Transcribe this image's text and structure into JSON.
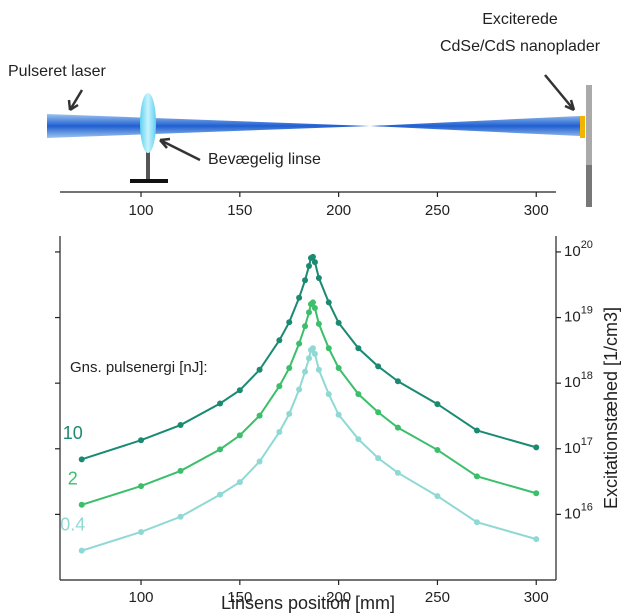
{
  "diagram": {
    "laser_label": "Pulseret laser",
    "lens_label": "Bevægelig linse",
    "sample_label": [
      "Exciterede",
      "CdSe/CdS nanoplader"
    ],
    "xlim": [
      59,
      310
    ],
    "xticks": [
      100,
      150,
      200,
      250,
      300
    ]
  },
  "chart_data": {
    "type": "line",
    "x_label": "Linsens position [mm]",
    "y_label": "Excitationstæhed [1/cm3]",
    "annotation": "Gns. pulsenergi [nJ]:",
    "x": [
      70,
      100,
      120,
      140,
      150,
      160,
      170,
      175,
      180,
      183,
      185,
      186,
      187,
      188,
      190,
      195,
      200,
      210,
      220,
      230,
      250,
      270,
      300
    ],
    "series": [
      {
        "name": "10",
        "color": "#1a8a72",
        "values": [
          6.9e+16,
          1.35e+17,
          2.3e+17,
          4.9e+17,
          7.8e+17,
          1.6e+18,
          4.5e+18,
          8.5e+18,
          2e+19,
          3.7e+19,
          6.1e+19,
          8.1e+19,
          8.4e+19,
          7e+19,
          4e+19,
          1.7e+19,
          8.3e+18,
          3.4e+18,
          1.8e+18,
          1.07e+18,
          4.8e+17,
          1.9e+17,
          1.05e+17
        ]
      },
      {
        "name": "2",
        "color": "#3cbf6b",
        "values": [
          1.4e+16,
          2.7e+16,
          4.6e+16,
          9.8e+16,
          1.6e+17,
          3.2e+17,
          9e+17,
          1.7e+18,
          4e+18,
          7.4e+18,
          1.2e+19,
          1.6e+19,
          1.7e+19,
          1.4e+19,
          8e+18,
          3.4e+18,
          1.7e+18,
          6.8e+17,
          3.6e+17,
          2.1e+17,
          9.6e+16,
          3.8e+16,
          2.1e+16
        ]
      },
      {
        "name": "0.4",
        "color": "#8fd9d4",
        "values": [
          2800000000000000.0,
          5400000000000000.0,
          9200000000000000.0,
          2e+16,
          3.1e+16,
          6.4e+16,
          1.8e+17,
          3.4e+17,
          8e+17,
          1.5e+18,
          2.4e+18,
          3.2e+18,
          3.4e+18,
          2.8e+18,
          1.6e+18,
          6.8e+17,
          3.3e+17,
          1.4e+17,
          7.2e+16,
          4.3e+16,
          1.9e+16,
          7600000000000000.0,
          4200000000000000.0
        ]
      }
    ],
    "xlim": [
      59,
      310
    ],
    "xticks": [
      100,
      150,
      200,
      250,
      300
    ],
    "ylim": [
      1000000000000000.0,
      1.75e+20
    ],
    "log_y": true,
    "y_axis_side": "right",
    "yticks": [
      {
        "value": 1e+16,
        "label": "10^16"
      },
      {
        "value": 1e+17,
        "label": "10^17"
      },
      {
        "value": 1e+18,
        "label": "10^18"
      },
      {
        "value": 1e+19,
        "label": "10^19"
      },
      {
        "value": 1e+20,
        "label": "10^20"
      }
    ]
  }
}
